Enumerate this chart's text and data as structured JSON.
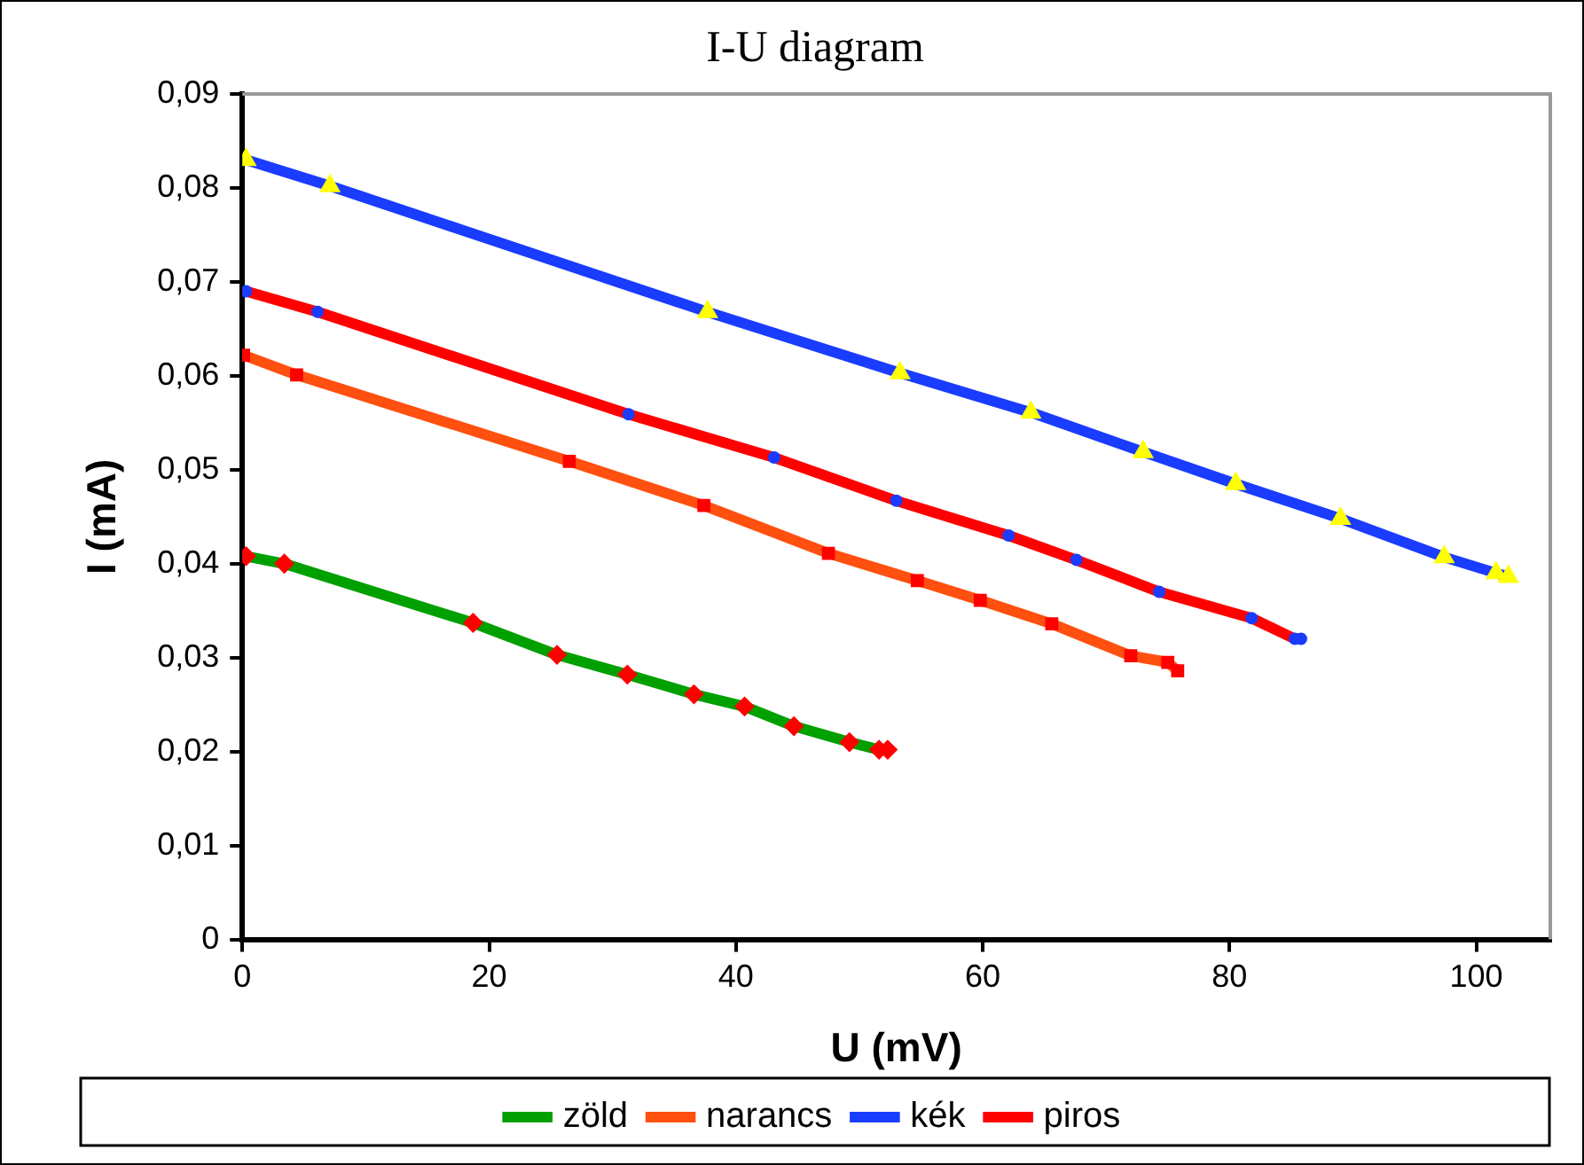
{
  "chart_data": {
    "type": "line",
    "title": "I-U diagram",
    "xlabel": "U (mV)",
    "ylabel": "I (mA)",
    "xlim": [
      0,
      106
    ],
    "xticks": [
      0,
      20,
      40,
      60,
      80,
      100
    ],
    "ylim": [
      0,
      0.09
    ],
    "yticks": [
      {
        "value": 0,
        "label": "0"
      },
      {
        "value": 0.01,
        "label": "0,01"
      },
      {
        "value": 0.02,
        "label": "0,02"
      },
      {
        "value": 0.03,
        "label": "0,03"
      },
      {
        "value": 0.04,
        "label": "0,04"
      },
      {
        "value": 0.05,
        "label": "0,05"
      },
      {
        "value": 0.06,
        "label": "0,06"
      },
      {
        "value": 0.07,
        "label": "0,07"
      },
      {
        "value": 0.08,
        "label": "0,08"
      },
      {
        "value": 0.09,
        "label": "0,09"
      }
    ],
    "grid": false,
    "legend": "bottom",
    "line_style": "solid",
    "series": [
      {
        "name": "zöld",
        "color": "#00a000",
        "marker": "diamond",
        "colors": [
          "#ff0000",
          "#ff0000",
          "#ff0000",
          "#ff0000",
          "#ff0000",
          "#ff0000",
          "#ff0000",
          "#ff0000",
          "#ff0000",
          "#ff0000",
          "#ff0000"
        ],
        "x": [
          0.3,
          3.4,
          18.7,
          25.5,
          31.2,
          36.6,
          40.7,
          44.7,
          49.2,
          51.6,
          52.3
        ],
        "values": [
          0.0408,
          0.04,
          0.0337,
          0.0303,
          0.0282,
          0.0261,
          0.0248,
          0.0227,
          0.021,
          0.0202,
          0.0202
        ]
      },
      {
        "name": "narancs",
        "color": "#ff5010",
        "marker": "square",
        "colors": [
          "#ff0000",
          "#ff0000",
          "#ff0000",
          "#ff0000",
          "#ff0000",
          "#ff0000",
          "#ff0000",
          "#ff0000",
          "#ff0000",
          "#ff0000",
          "#ff0000"
        ],
        "x": [
          0.1,
          4.4,
          26.5,
          37.4,
          47.5,
          54.7,
          59.8,
          65.6,
          72.0,
          75.0,
          75.8
        ],
        "values": [
          0.0622,
          0.0601,
          0.0509,
          0.0462,
          0.0411,
          0.0382,
          0.0361,
          0.0336,
          0.0302,
          0.0295,
          0.0286
        ]
      },
      {
        "name": "kék",
        "color": "#1a3cff",
        "marker": "triangle",
        "colors": [
          "#ffff00",
          "#ffff00",
          "#ffff00",
          "#ffff00",
          "#ffff00",
          "#ffff00",
          "#ffff00",
          "#ffff00",
          "#ffff00",
          "#ffff00",
          "#ffff00"
        ],
        "x": [
          0.3,
          7.1,
          37.7,
          53.3,
          63.9,
          73.0,
          80.5,
          89.0,
          97.4,
          101.6,
          102.6
        ],
        "values": [
          0.083,
          0.0802,
          0.0668,
          0.0603,
          0.0561,
          0.0519,
          0.0485,
          0.0448,
          0.0407,
          0.039,
          0.0386
        ]
      },
      {
        "name": "piros",
        "color": "#ff0000",
        "marker": "circle",
        "colors": [
          "#1a3cff",
          "#1a3cff",
          "#1a3cff",
          "#1a3cff",
          "#1a3cff",
          "#1a3cff",
          "#1a3cff",
          "#1a3cff",
          "#1a3cff",
          "#1a3cff",
          "#1a3cff"
        ],
        "x": [
          0.3,
          6.1,
          31.3,
          43.1,
          53.0,
          62.1,
          67.6,
          74.3,
          81.8,
          85.3,
          85.8
        ],
        "values": [
          0.069,
          0.0668,
          0.0559,
          0.0513,
          0.0467,
          0.043,
          0.0404,
          0.037,
          0.0342,
          0.032,
          0.032
        ]
      }
    ]
  }
}
